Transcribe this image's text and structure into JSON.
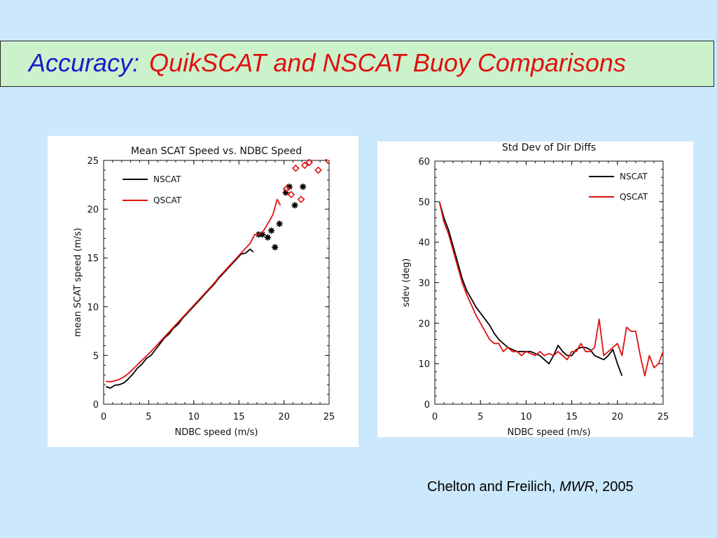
{
  "title": {
    "part1": "Accuracy:",
    "part2": "QuikSCAT and NSCAT Buoy Comparisons"
  },
  "colors": {
    "background": "#cce8fc",
    "title_bar": "#ccf2cc",
    "title_blue": "#1a1acc",
    "title_red": "#e01010",
    "nscat": "#000000",
    "qscat": "#e01010"
  },
  "citation": {
    "authors": "Chelton and Freilich, ",
    "journal": "MWR",
    "year": ", 2005"
  },
  "chart_data": [
    {
      "type": "line",
      "title": "Mean SCAT Speed vs. NDBC Speed",
      "xlabel": "NDBC speed (m/s)",
      "ylabel": "mean SCAT speed (m/s)",
      "xlim": [
        0,
        25
      ],
      "ylim": [
        0,
        25
      ],
      "xticks": [
        0,
        5,
        10,
        15,
        20,
        25
      ],
      "yticks": [
        0,
        5,
        10,
        15,
        20,
        25
      ],
      "legend": "top-left",
      "grid": false,
      "series": [
        {
          "name": "NSCAT",
          "color": "#000000",
          "line": [
            [
              0.25,
              1.8
            ],
            [
              0.75,
              1.65
            ],
            [
              1.25,
              1.95
            ],
            [
              1.75,
              2.0
            ],
            [
              2.25,
              2.2
            ],
            [
              2.75,
              2.6
            ],
            [
              3.25,
              3.1
            ],
            [
              3.75,
              3.7
            ],
            [
              4.25,
              4.1
            ],
            [
              4.75,
              4.7
            ],
            [
              5.25,
              5.0
            ],
            [
              5.75,
              5.6
            ],
            [
              6.25,
              6.2
            ],
            [
              6.75,
              6.8
            ],
            [
              7.25,
              7.2
            ],
            [
              7.75,
              7.8
            ],
            [
              8.25,
              8.2
            ],
            [
              8.75,
              8.8
            ],
            [
              9.25,
              9.3
            ],
            [
              9.75,
              9.8
            ],
            [
              10.25,
              10.3
            ],
            [
              10.75,
              10.8
            ],
            [
              11.25,
              11.3
            ],
            [
              11.75,
              11.8
            ],
            [
              12.25,
              12.3
            ],
            [
              12.75,
              12.9
            ],
            [
              13.25,
              13.4
            ],
            [
              13.75,
              13.9
            ],
            [
              14.25,
              14.4
            ],
            [
              14.75,
              14.9
            ],
            [
              15.25,
              15.4
            ],
            [
              15.75,
              15.5
            ],
            [
              16.25,
              15.9
            ],
            [
              16.6,
              15.6
            ]
          ],
          "markers": [
            [
              17.2,
              17.4
            ],
            [
              17.6,
              17.4
            ],
            [
              18.2,
              17.1
            ],
            [
              18.6,
              17.8
            ],
            [
              19.0,
              16.1
            ],
            [
              19.5,
              18.5
            ],
            [
              20.2,
              21.7
            ],
            [
              20.6,
              22.3
            ],
            [
              21.2,
              20.4
            ],
            [
              22.1,
              22.3
            ]
          ],
          "marker": "asterisk"
        },
        {
          "name": "QSCAT",
          "color": "#e01010",
          "line": [
            [
              0.25,
              2.35
            ],
            [
              0.75,
              2.3
            ],
            [
              1.25,
              2.4
            ],
            [
              1.75,
              2.55
            ],
            [
              2.25,
              2.8
            ],
            [
              2.75,
              3.15
            ],
            [
              3.25,
              3.6
            ],
            [
              3.75,
              4.05
            ],
            [
              4.25,
              4.5
            ],
            [
              4.75,
              4.95
            ],
            [
              5.25,
              5.4
            ],
            [
              5.75,
              5.9
            ],
            [
              6.25,
              6.4
            ],
            [
              6.75,
              6.9
            ],
            [
              7.25,
              7.4
            ],
            [
              7.75,
              7.9
            ],
            [
              8.25,
              8.4
            ],
            [
              8.75,
              8.9
            ],
            [
              9.25,
              9.4
            ],
            [
              9.75,
              9.9
            ],
            [
              10.25,
              10.4
            ],
            [
              10.75,
              10.9
            ],
            [
              11.25,
              11.4
            ],
            [
              11.75,
              11.9
            ],
            [
              12.25,
              12.4
            ],
            [
              12.75,
              13.0
            ],
            [
              13.25,
              13.5
            ],
            [
              13.75,
              14.0
            ],
            [
              14.25,
              14.5
            ],
            [
              14.75,
              15.0
            ],
            [
              15.25,
              15.5
            ],
            [
              15.75,
              16.0
            ],
            [
              16.25,
              16.5
            ],
            [
              16.75,
              17.4
            ],
            [
              17.25,
              17.4
            ],
            [
              17.75,
              17.8
            ],
            [
              18.25,
              18.6
            ],
            [
              18.75,
              19.4
            ],
            [
              19.25,
              21.0
            ],
            [
              19.6,
              20.4
            ]
          ],
          "markers": [
            [
              20.3,
              22.1
            ],
            [
              20.8,
              21.5
            ],
            [
              21.3,
              24.2
            ],
            [
              21.9,
              21.0
            ],
            [
              22.3,
              24.5
            ],
            [
              22.8,
              24.8
            ],
            [
              23.8,
              24.0
            ],
            [
              24.9,
              25.0
            ]
          ],
          "marker": "diamond"
        }
      ]
    },
    {
      "type": "line",
      "title": "Std Dev of Dir Diffs",
      "xlabel": "NDBC speed (m/s)",
      "ylabel": "sdev (deg)",
      "xlim": [
        0,
        25
      ],
      "ylim": [
        0,
        60
      ],
      "xticks": [
        0,
        5,
        10,
        15,
        20,
        25
      ],
      "yticks": [
        0,
        10,
        20,
        30,
        40,
        50,
        60
      ],
      "legend": "top-right",
      "grid": false,
      "series": [
        {
          "name": "NSCAT",
          "color": "#000000",
          "line": [
            [
              0.5,
              50
            ],
            [
              1.0,
              46
            ],
            [
              1.5,
              43
            ],
            [
              2.0,
              39
            ],
            [
              2.5,
              35
            ],
            [
              3.0,
              31
            ],
            [
              3.5,
              28
            ],
            [
              4.0,
              26
            ],
            [
              4.5,
              24
            ],
            [
              5.0,
              22.5
            ],
            [
              5.5,
              21
            ],
            [
              6.0,
              19.5
            ],
            [
              6.5,
              17.5
            ],
            [
              7.0,
              16
            ],
            [
              7.5,
              15
            ],
            [
              8.0,
              14
            ],
            [
              8.5,
              13.5
            ],
            [
              9.0,
              13
            ],
            [
              9.5,
              13
            ],
            [
              10.0,
              13
            ],
            [
              10.5,
              13
            ],
            [
              11.0,
              12.5
            ],
            [
              11.5,
              12
            ],
            [
              12.0,
              11
            ],
            [
              12.5,
              10
            ],
            [
              13.0,
              12
            ],
            [
              13.5,
              14.5
            ],
            [
              14.0,
              13
            ],
            [
              14.5,
              12
            ],
            [
              15.0,
              12
            ],
            [
              15.5,
              13.5
            ],
            [
              16.0,
              14
            ],
            [
              16.5,
              14
            ],
            [
              17.0,
              13.5
            ],
            [
              17.5,
              12
            ],
            [
              18.0,
              11.5
            ],
            [
              18.5,
              11
            ],
            [
              19.0,
              12
            ],
            [
              19.5,
              13.5
            ],
            [
              20.0,
              10
            ],
            [
              20.5,
              7
            ]
          ]
        },
        {
          "name": "QSCAT",
          "color": "#e01010",
          "line": [
            [
              0.5,
              50
            ],
            [
              1.0,
              45
            ],
            [
              1.5,
              42
            ],
            [
              2.0,
              38
            ],
            [
              2.5,
              34
            ],
            [
              3.0,
              30
            ],
            [
              3.5,
              27
            ],
            [
              4.0,
              24.5
            ],
            [
              4.5,
              22
            ],
            [
              5.0,
              20
            ],
            [
              5.5,
              18
            ],
            [
              6.0,
              16
            ],
            [
              6.5,
              15
            ],
            [
              7.0,
              15
            ],
            [
              7.5,
              13
            ],
            [
              8.0,
              14
            ],
            [
              8.5,
              13
            ],
            [
              9.0,
              13
            ],
            [
              9.5,
              12
            ],
            [
              10.0,
              13
            ],
            [
              10.5,
              12.5
            ],
            [
              11.0,
              12
            ],
            [
              11.5,
              13
            ],
            [
              12.0,
              12
            ],
            [
              12.5,
              12.5
            ],
            [
              13.0,
              12
            ],
            [
              13.5,
              13
            ],
            [
              14.0,
              12
            ],
            [
              14.5,
              11
            ],
            [
              15.0,
              13
            ],
            [
              15.5,
              13
            ],
            [
              16.0,
              15
            ],
            [
              16.5,
              13
            ],
            [
              17.0,
              13
            ],
            [
              17.5,
              14
            ],
            [
              18.0,
              21
            ],
            [
              18.5,
              12
            ],
            [
              19.0,
              13
            ],
            [
              19.5,
              14
            ],
            [
              20.0,
              15
            ],
            [
              20.5,
              12
            ],
            [
              21.0,
              19
            ],
            [
              21.5,
              18
            ],
            [
              22.0,
              18
            ],
            [
              22.5,
              12
            ],
            [
              23.0,
              7
            ],
            [
              23.5,
              12
            ],
            [
              24.0,
              9
            ],
            [
              24.5,
              10
            ],
            [
              25.0,
              13
            ]
          ]
        }
      ]
    }
  ]
}
